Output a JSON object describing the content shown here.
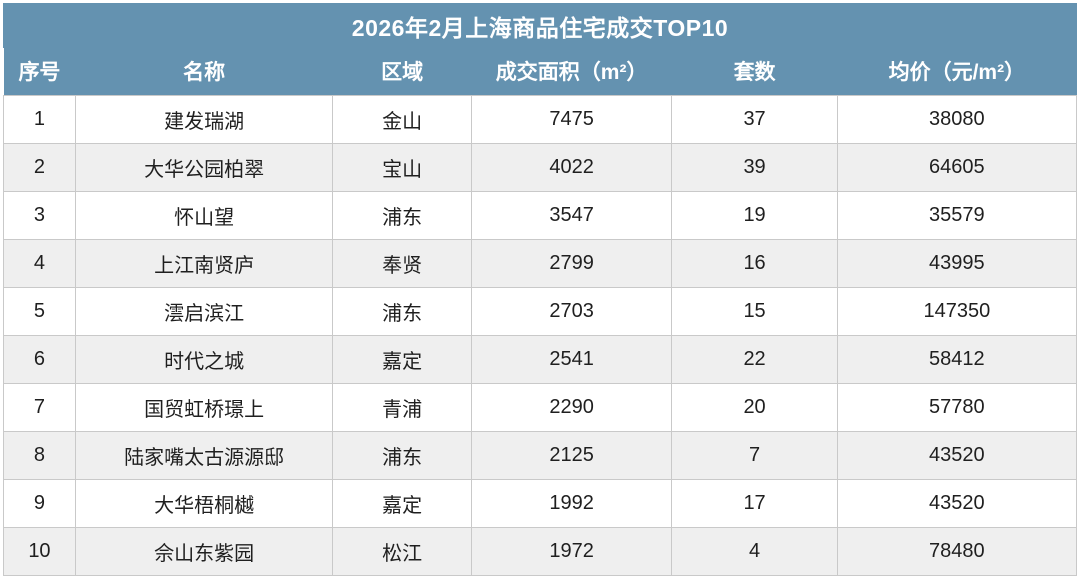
{
  "title": "2026年2月上海商品住宅成交TOP10",
  "colors": {
    "header_bg": "#6492b0",
    "row_alt_bg": "#efefef",
    "border": "#c9c9c9",
    "header_text": "#ffffff",
    "cell_text": "#1f1f1f"
  },
  "chart_data": {
    "type": "table",
    "title": "2026年2月上海商品住宅成交TOP10",
    "columns": [
      "序号",
      "名称",
      "区域",
      "成交面积（m²）",
      "套数",
      "均价（元/m²）"
    ],
    "column_keys": [
      "rank",
      "name",
      "district",
      "area",
      "units",
      "price"
    ],
    "rows": [
      {
        "rank": "1",
        "name": "建发瑞湖",
        "district": "金山",
        "area": "7475",
        "units": "37",
        "price": "38080"
      },
      {
        "rank": "2",
        "name": "大华公园柏翠",
        "district": "宝山",
        "area": "4022",
        "units": "39",
        "price": "64605"
      },
      {
        "rank": "3",
        "name": "怀山望",
        "district": "浦东",
        "area": "3547",
        "units": "19",
        "price": "35579"
      },
      {
        "rank": "4",
        "name": "上江南贤庐",
        "district": "奉贤",
        "area": "2799",
        "units": "16",
        "price": "43995"
      },
      {
        "rank": "5",
        "name": "澐启滨江",
        "district": "浦东",
        "area": "2703",
        "units": "15",
        "price": "147350"
      },
      {
        "rank": "6",
        "name": "时代之城",
        "district": "嘉定",
        "area": "2541",
        "units": "22",
        "price": "58412"
      },
      {
        "rank": "7",
        "name": "国贸虹桥璟上",
        "district": "青浦",
        "area": "2290",
        "units": "20",
        "price": "57780"
      },
      {
        "rank": "8",
        "name": "陆家嘴太古源源邸",
        "district": "浦东",
        "area": "2125",
        "units": "7",
        "price": "43520"
      },
      {
        "rank": "9",
        "name": "大华梧桐樾",
        "district": "嘉定",
        "area": "1992",
        "units": "17",
        "price": "43520"
      },
      {
        "rank": "10",
        "name": "佘山东紫园",
        "district": "松江",
        "area": "1972",
        "units": "4",
        "price": "78480"
      }
    ]
  }
}
